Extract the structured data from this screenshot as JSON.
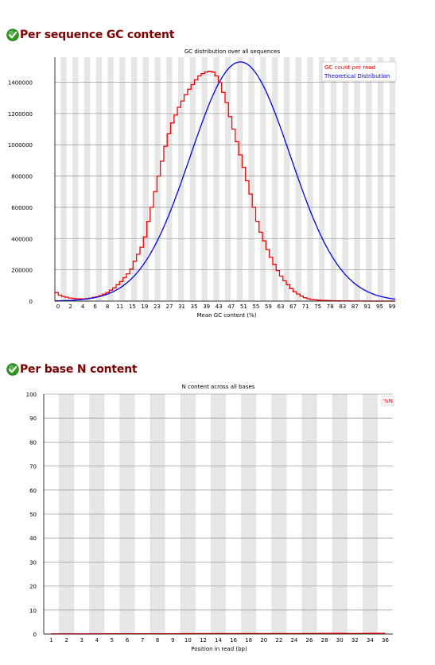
{
  "sections": [
    {
      "title": "Per sequence GC content",
      "status_icon": "pass-check-icon",
      "status_color": "#2e9b1f"
    },
    {
      "title": "Per base N content",
      "status_icon": "pass-check-icon",
      "status_color": "#2e9b1f"
    }
  ],
  "chart_data": [
    {
      "type": "line",
      "title": "GC distribution over all sequences",
      "xlabel": "Mean GC content (%)",
      "ylabel": "",
      "x_ticks": [
        "0",
        "2",
        "4",
        "6",
        "8",
        "11",
        "15",
        "19",
        "23",
        "27",
        "31",
        "35",
        "39",
        "43",
        "47",
        "51",
        "55",
        "59",
        "63",
        "67",
        "71",
        "75",
        "78",
        "83",
        "87",
        "91",
        "95",
        "99"
      ],
      "y_ticks": [
        "0",
        "200000",
        "400000",
        "600000",
        "800000",
        "1000000",
        "1200000",
        "1400000"
      ],
      "xlim": [
        0,
        100
      ],
      "ylim": [
        0,
        1560000
      ],
      "grid": true,
      "legend_position": "top-right",
      "series": [
        {
          "name": "GC count per read",
          "color": "#ff0000",
          "step": true,
          "points": [
            [
              0,
              55000
            ],
            [
              1,
              38000
            ],
            [
              2,
              30000
            ],
            [
              3,
              25000
            ],
            [
              4,
              20000
            ],
            [
              5,
              18000
            ],
            [
              6,
              15000
            ],
            [
              7,
              14000
            ],
            [
              8,
              14000
            ],
            [
              9,
              16000
            ],
            [
              10,
              20000
            ],
            [
              11,
              24000
            ],
            [
              12,
              28000
            ],
            [
              13,
              35000
            ],
            [
              14,
              45000
            ],
            [
              15,
              55000
            ],
            [
              16,
              70000
            ],
            [
              17,
              85000
            ],
            [
              18,
              105000
            ],
            [
              19,
              125000
            ],
            [
              20,
              150000
            ],
            [
              21,
              175000
            ],
            [
              22,
              205000
            ],
            [
              23,
              255000
            ],
            [
              24,
              300000
            ],
            [
              25,
              345000
            ],
            [
              26,
              410000
            ],
            [
              27,
              510000
            ],
            [
              28,
              600000
            ],
            [
              29,
              700000
            ],
            [
              30,
              800000
            ],
            [
              31,
              895000
            ],
            [
              32,
              990000
            ],
            [
              33,
              1070000
            ],
            [
              34,
              1140000
            ],
            [
              35,
              1190000
            ],
            [
              36,
              1240000
            ],
            [
              37,
              1280000
            ],
            [
              38,
              1320000
            ],
            [
              39,
              1355000
            ],
            [
              40,
              1385000
            ],
            [
              41,
              1415000
            ],
            [
              42,
              1440000
            ],
            [
              43,
              1455000
            ],
            [
              44,
              1465000
            ],
            [
              45,
              1470000
            ],
            [
              46,
              1465000
            ],
            [
              47,
              1440000
            ],
            [
              48,
              1400000
            ],
            [
              49,
              1335000
            ],
            [
              50,
              1270000
            ],
            [
              51,
              1180000
            ],
            [
              52,
              1100000
            ],
            [
              53,
              1020000
            ],
            [
              54,
              935000
            ],
            [
              55,
              855000
            ],
            [
              56,
              770000
            ],
            [
              57,
              685000
            ],
            [
              58,
              600000
            ],
            [
              59,
              510000
            ],
            [
              60,
              440000
            ],
            [
              61,
              385000
            ],
            [
              62,
              330000
            ],
            [
              63,
              280000
            ],
            [
              64,
              235000
            ],
            [
              65,
              195000
            ],
            [
              66,
              160000
            ],
            [
              67,
              130000
            ],
            [
              68,
              105000
            ],
            [
              69,
              80000
            ],
            [
              70,
              60000
            ],
            [
              71,
              45000
            ],
            [
              72,
              32000
            ],
            [
              73,
              22000
            ],
            [
              74,
              15000
            ],
            [
              75,
              10000
            ],
            [
              76,
              8000
            ],
            [
              77,
              6000
            ],
            [
              78,
              5000
            ],
            [
              79,
              4000
            ],
            [
              80,
              3000
            ],
            [
              81,
              2500
            ],
            [
              82,
              2000
            ],
            [
              83,
              1500
            ],
            [
              84,
              1200
            ],
            [
              85,
              1000
            ],
            [
              86,
              800
            ],
            [
              87,
              600
            ],
            [
              88,
              500
            ],
            [
              89,
              400
            ],
            [
              90,
              300
            ],
            [
              91,
              250
            ],
            [
              92,
              200
            ],
            [
              93,
              150
            ],
            [
              94,
              100
            ],
            [
              95,
              80
            ],
            [
              96,
              60
            ],
            [
              97,
              40
            ],
            [
              98,
              20
            ],
            [
              99,
              10
            ],
            [
              100,
              0
            ]
          ]
        },
        {
          "name": "Theoretical Distribution",
          "color": "#0000ff",
          "gauss": {
            "mean": 54.5,
            "sd": 14.7,
            "peak": 1530000
          }
        }
      ]
    },
    {
      "type": "line",
      "title": "N content across all bases",
      "xlabel": "Position in read (bp)",
      "ylabel": "",
      "x_ticks": [
        "1",
        "2",
        "3",
        "4",
        "5",
        "6",
        "7",
        "8",
        "9",
        "10",
        "12",
        "14",
        "16",
        "18",
        "20",
        "22",
        "24",
        "26",
        "28",
        "30",
        "32",
        "34",
        "36"
      ],
      "y_ticks": [
        "0",
        "10",
        "20",
        "30",
        "40",
        "50",
        "60",
        "70",
        "80",
        "90",
        "100"
      ],
      "ylim": [
        0,
        100
      ],
      "grid": true,
      "legend_position": "top-right",
      "series": [
        {
          "name": "%N",
          "color": "#ff0000",
          "values": [
            0.05,
            0.05,
            0.05,
            0.05,
            0.1,
            0.1,
            0.1,
            0.1,
            0.1,
            0.15,
            0.2,
            0.2,
            0.2,
            0.2,
            0.2,
            0.2,
            0.2,
            0.2,
            0.25,
            0.25,
            0.2,
            0.25,
            0.25
          ]
        }
      ]
    }
  ]
}
